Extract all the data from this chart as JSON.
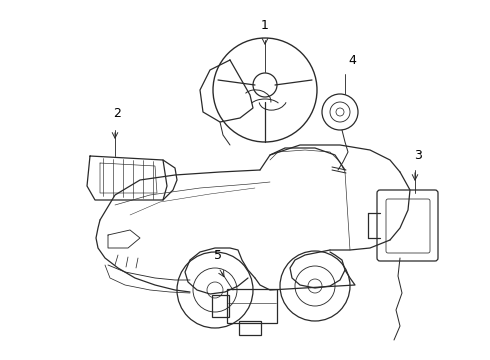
{
  "background_color": "#ffffff",
  "line_color": "#2a2a2a",
  "label_color": "#000000",
  "fig_width": 4.9,
  "fig_height": 3.6,
  "dpi": 100,
  "label_fontsize": 8
}
